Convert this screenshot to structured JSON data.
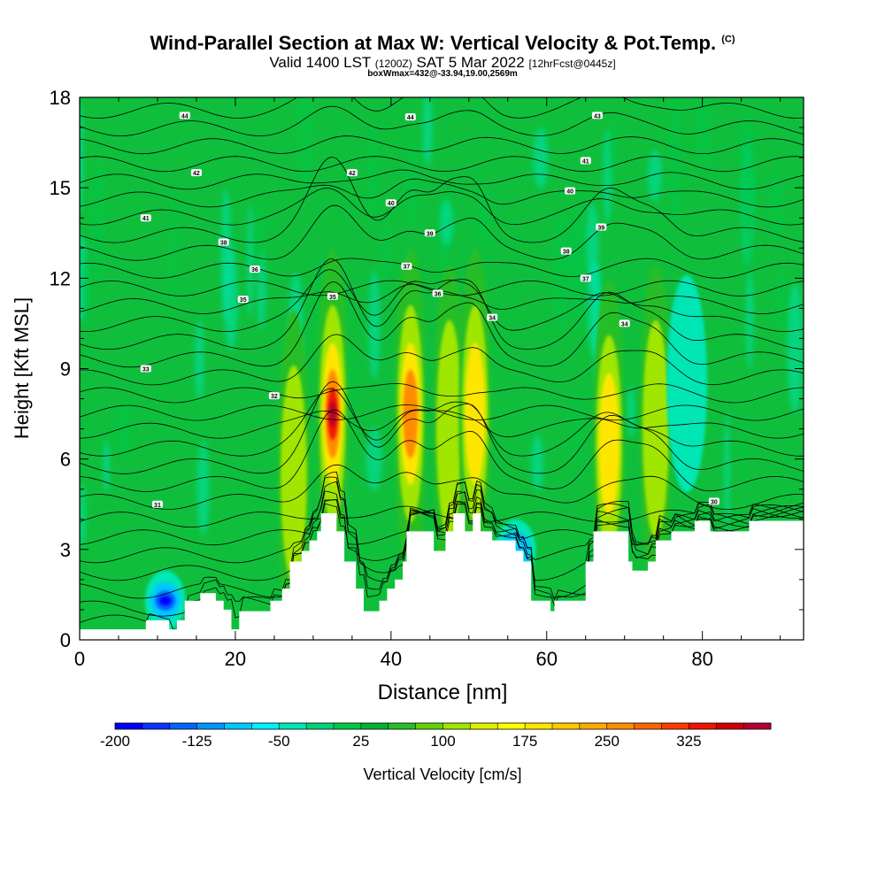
{
  "title": {
    "main": "Wind-Parallel Section at Max W: Vertical Velocity & Pot.Temp.",
    "suffix": "(C)"
  },
  "subtitle": {
    "part1": "Valid 1400 LST",
    "part2": "(1200Z)",
    "part3": "SAT 5 Mar 2022",
    "part4": "[12hrFcst@0445z]",
    "box_line": "boxWmax=432@-33.94,19.00,2569m"
  },
  "chart_data": {
    "type": "heatmap",
    "title": "Wind-Parallel Section at Max W: Vertical Velocity & Pot.Temp.",
    "xlabel": "Distance [nm]",
    "ylabel": "Height [Kft MSL]",
    "xlim": [
      0,
      93
    ],
    "ylim": [
      0,
      18
    ],
    "x_ticks": [
      "0",
      "20",
      "40",
      "60",
      "80"
    ],
    "y_ticks": [
      "0",
      "3",
      "6",
      "9",
      "12",
      "15",
      "18"
    ],
    "colorbar": {
      "label": "Vertical Velocity [cm/s]",
      "tick_labels": [
        "-200",
        "-125",
        "-50",
        "25",
        "100",
        "175",
        "250",
        "325"
      ],
      "colors": [
        "#0000ff",
        "#0a32ff",
        "#0064ff",
        "#0096ff",
        "#00c8ff",
        "#00f0ff",
        "#00e6b4",
        "#00d278",
        "#00c846",
        "#00b432",
        "#28be28",
        "#64d20a",
        "#a0e600",
        "#dcf000",
        "#ffff00",
        "#ffe600",
        "#ffc800",
        "#ffaa00",
        "#ff8c00",
        "#ff6400",
        "#ff3c00",
        "#f01400",
        "#d20000",
        "#b40032"
      ]
    },
    "terrain_kft": [
      [
        0,
        0.35
      ],
      [
        8.5,
        0.35
      ],
      [
        8.5,
        0.65
      ],
      [
        11.5,
        0.65
      ],
      [
        11.5,
        0.35
      ],
      [
        12.5,
        0.35
      ],
      [
        12.5,
        0.65
      ],
      [
        13.5,
        0.65
      ],
      [
        13.5,
        1.3
      ],
      [
        15.5,
        1.3
      ],
      [
        15.5,
        1.55
      ],
      [
        17.5,
        1.55
      ],
      [
        17.5,
        1.3
      ],
      [
        18.5,
        1.3
      ],
      [
        18.5,
        1.0
      ],
      [
        19.5,
        1.0
      ],
      [
        19.5,
        0.35
      ],
      [
        20.5,
        0.35
      ],
      [
        20.5,
        0.95
      ],
      [
        21,
        0.95
      ],
      [
        21,
        0.95
      ],
      [
        24.5,
        0.95
      ],
      [
        24.5,
        1.3
      ],
      [
        26,
        1.3
      ],
      [
        26,
        1.7
      ],
      [
        27,
        1.7
      ],
      [
        27,
        2.6
      ],
      [
        28.5,
        2.6
      ],
      [
        28.5,
        2.95
      ],
      [
        29.5,
        2.95
      ],
      [
        29.5,
        3.3
      ],
      [
        30.5,
        3.3
      ],
      [
        30.5,
        3.6
      ],
      [
        31,
        3.6
      ],
      [
        31,
        4.2
      ],
      [
        32.5,
        4.2
      ],
      [
        32.5,
        4.2
      ],
      [
        33,
        4.2
      ],
      [
        33,
        3.6
      ],
      [
        34,
        3.6
      ],
      [
        34,
        2.6
      ],
      [
        35.5,
        2.6
      ],
      [
        35.5,
        1.7
      ],
      [
        36.5,
        1.7
      ],
      [
        36.5,
        0.95
      ],
      [
        38.5,
        0.95
      ],
      [
        38.5,
        1.3
      ],
      [
        39.5,
        1.3
      ],
      [
        39.5,
        1.7
      ],
      [
        40.5,
        1.7
      ],
      [
        40.5,
        2.0
      ],
      [
        41.5,
        2.0
      ],
      [
        41.5,
        2.6
      ],
      [
        42,
        2.6
      ],
      [
        42,
        3.6
      ],
      [
        45.5,
        3.6
      ],
      [
        45.5,
        2.95
      ],
      [
        47,
        2.95
      ],
      [
        47,
        3.6
      ],
      [
        48,
        3.6
      ],
      [
        48,
        4.2
      ],
      [
        49.5,
        4.2
      ],
      [
        49.5,
        3.6
      ],
      [
        50.5,
        3.6
      ],
      [
        50.5,
        4.2
      ],
      [
        51.5,
        4.2
      ],
      [
        51.5,
        3.6
      ],
      [
        53,
        3.6
      ],
      [
        53,
        3.3
      ],
      [
        56,
        3.3
      ],
      [
        56,
        2.95
      ],
      [
        57,
        2.95
      ],
      [
        57,
        2.6
      ],
      [
        58,
        2.6
      ],
      [
        58,
        1.3
      ],
      [
        60.5,
        1.3
      ],
      [
        60.5,
        0.95
      ],
      [
        61,
        0.95
      ],
      [
        61,
        1.3
      ],
      [
        65,
        1.3
      ],
      [
        65,
        2.6
      ],
      [
        66,
        2.6
      ],
      [
        66,
        3.6
      ],
      [
        70.5,
        3.6
      ],
      [
        70.5,
        2.6
      ],
      [
        71,
        2.6
      ],
      [
        71,
        2.3
      ],
      [
        73,
        2.3
      ],
      [
        73,
        2.6
      ],
      [
        74,
        2.6
      ],
      [
        74,
        3.3
      ],
      [
        76,
        3.3
      ],
      [
        76,
        3.6
      ],
      [
        79,
        3.6
      ],
      [
        79,
        3.95
      ],
      [
        81,
        3.95
      ],
      [
        81,
        3.6
      ],
      [
        86,
        3.6
      ],
      [
        86,
        3.95
      ],
      [
        93,
        3.95
      ]
    ],
    "vertical_velocity_cores": [
      {
        "x": 32.5,
        "y": 7.5,
        "peak_cm_s": 432,
        "sign": "up"
      },
      {
        "x": 42.5,
        "y": 7.5,
        "peak_cm_s": 300,
        "sign": "up"
      },
      {
        "x": 47.5,
        "y": 7.0,
        "peak_cm_s": 160,
        "sign": "up"
      },
      {
        "x": 50.8,
        "y": 7.5,
        "peak_cm_s": 200,
        "sign": "up"
      },
      {
        "x": 68.0,
        "y": 6.5,
        "peak_cm_s": 220,
        "sign": "up"
      },
      {
        "x": 74.0,
        "y": 7.0,
        "peak_cm_s": 150,
        "sign": "up"
      },
      {
        "x": 27.5,
        "y": 5.5,
        "peak_cm_s": 140,
        "sign": "up"
      },
      {
        "x": 78.0,
        "y": 8.5,
        "peak_cm_s": -70,
        "sign": "down"
      },
      {
        "x": 11.0,
        "y": 1.3,
        "peak_cm_s": -200,
        "sign": "down"
      },
      {
        "x": 56.0,
        "y": 3.0,
        "peak_cm_s": -130,
        "sign": "down"
      },
      {
        "x": 36.0,
        "y": 9.0,
        "peak_cm_s": -40,
        "sign": "down"
      }
    ],
    "theta_contour_labels": [
      {
        "text": "44",
        "x": 13.5,
        "y": 17.4
      },
      {
        "text": "44",
        "x": 42.5,
        "y": 17.35
      },
      {
        "text": "43",
        "x": 66.5,
        "y": 17.4
      },
      {
        "text": "42",
        "x": 15.0,
        "y": 15.5
      },
      {
        "text": "42",
        "x": 35.0,
        "y": 15.5
      },
      {
        "text": "41",
        "x": 65.0,
        "y": 15.9
      },
      {
        "text": "41",
        "x": 8.5,
        "y": 14.0
      },
      {
        "text": "40",
        "x": 40.0,
        "y": 14.5
      },
      {
        "text": "40",
        "x": 63.0,
        "y": 14.9
      },
      {
        "text": "39",
        "x": 45.0,
        "y": 13.5
      },
      {
        "text": "39",
        "x": 67.0,
        "y": 13.7
      },
      {
        "text": "38",
        "x": 18.5,
        "y": 13.2
      },
      {
        "text": "38",
        "x": 62.5,
        "y": 12.9
      },
      {
        "text": "37",
        "x": 42.0,
        "y": 12.4
      },
      {
        "text": "37",
        "x": 65.0,
        "y": 12.0
      },
      {
        "text": "36",
        "x": 22.5,
        "y": 12.3
      },
      {
        "text": "36",
        "x": 46.0,
        "y": 11.5
      },
      {
        "text": "35",
        "x": 21.0,
        "y": 11.3
      },
      {
        "text": "35",
        "x": 32.5,
        "y": 11.4
      },
      {
        "text": "34",
        "x": 53.0,
        "y": 10.7
      },
      {
        "text": "34",
        "x": 70.0,
        "y": 10.5
      },
      {
        "text": "33",
        "x": 8.5,
        "y": 9.0
      },
      {
        "text": "32",
        "x": 25.0,
        "y": 8.1
      },
      {
        "text": "31",
        "x": 10.0,
        "y": 4.5
      },
      {
        "text": "30",
        "x": 81.5,
        "y": 4.6
      }
    ]
  }
}
